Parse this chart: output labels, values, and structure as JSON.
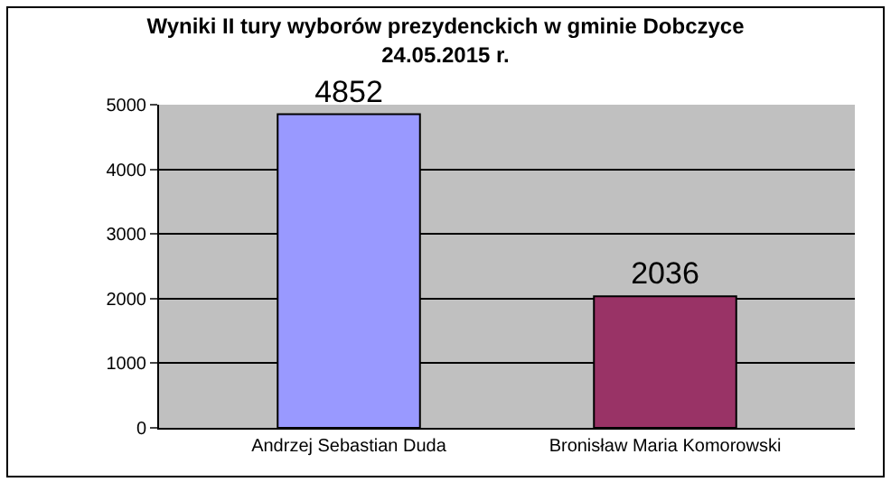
{
  "chart_data": {
    "type": "bar",
    "title": "Wyniki II tury wyborów prezydenckich w gminie Dobczyce",
    "subtitle": "24.05.2015 r.",
    "categories": [
      "Andrzej Sebastian Duda",
      "Bronisław Maria Komorowski"
    ],
    "values": [
      4852,
      2036
    ],
    "colors": [
      "#9999ff",
      "#993366"
    ],
    "ylim": [
      0,
      5000
    ],
    "yticks": [
      0,
      1000,
      2000,
      3000,
      4000,
      5000
    ],
    "grid": "y",
    "data_labels": true,
    "legend": false
  }
}
